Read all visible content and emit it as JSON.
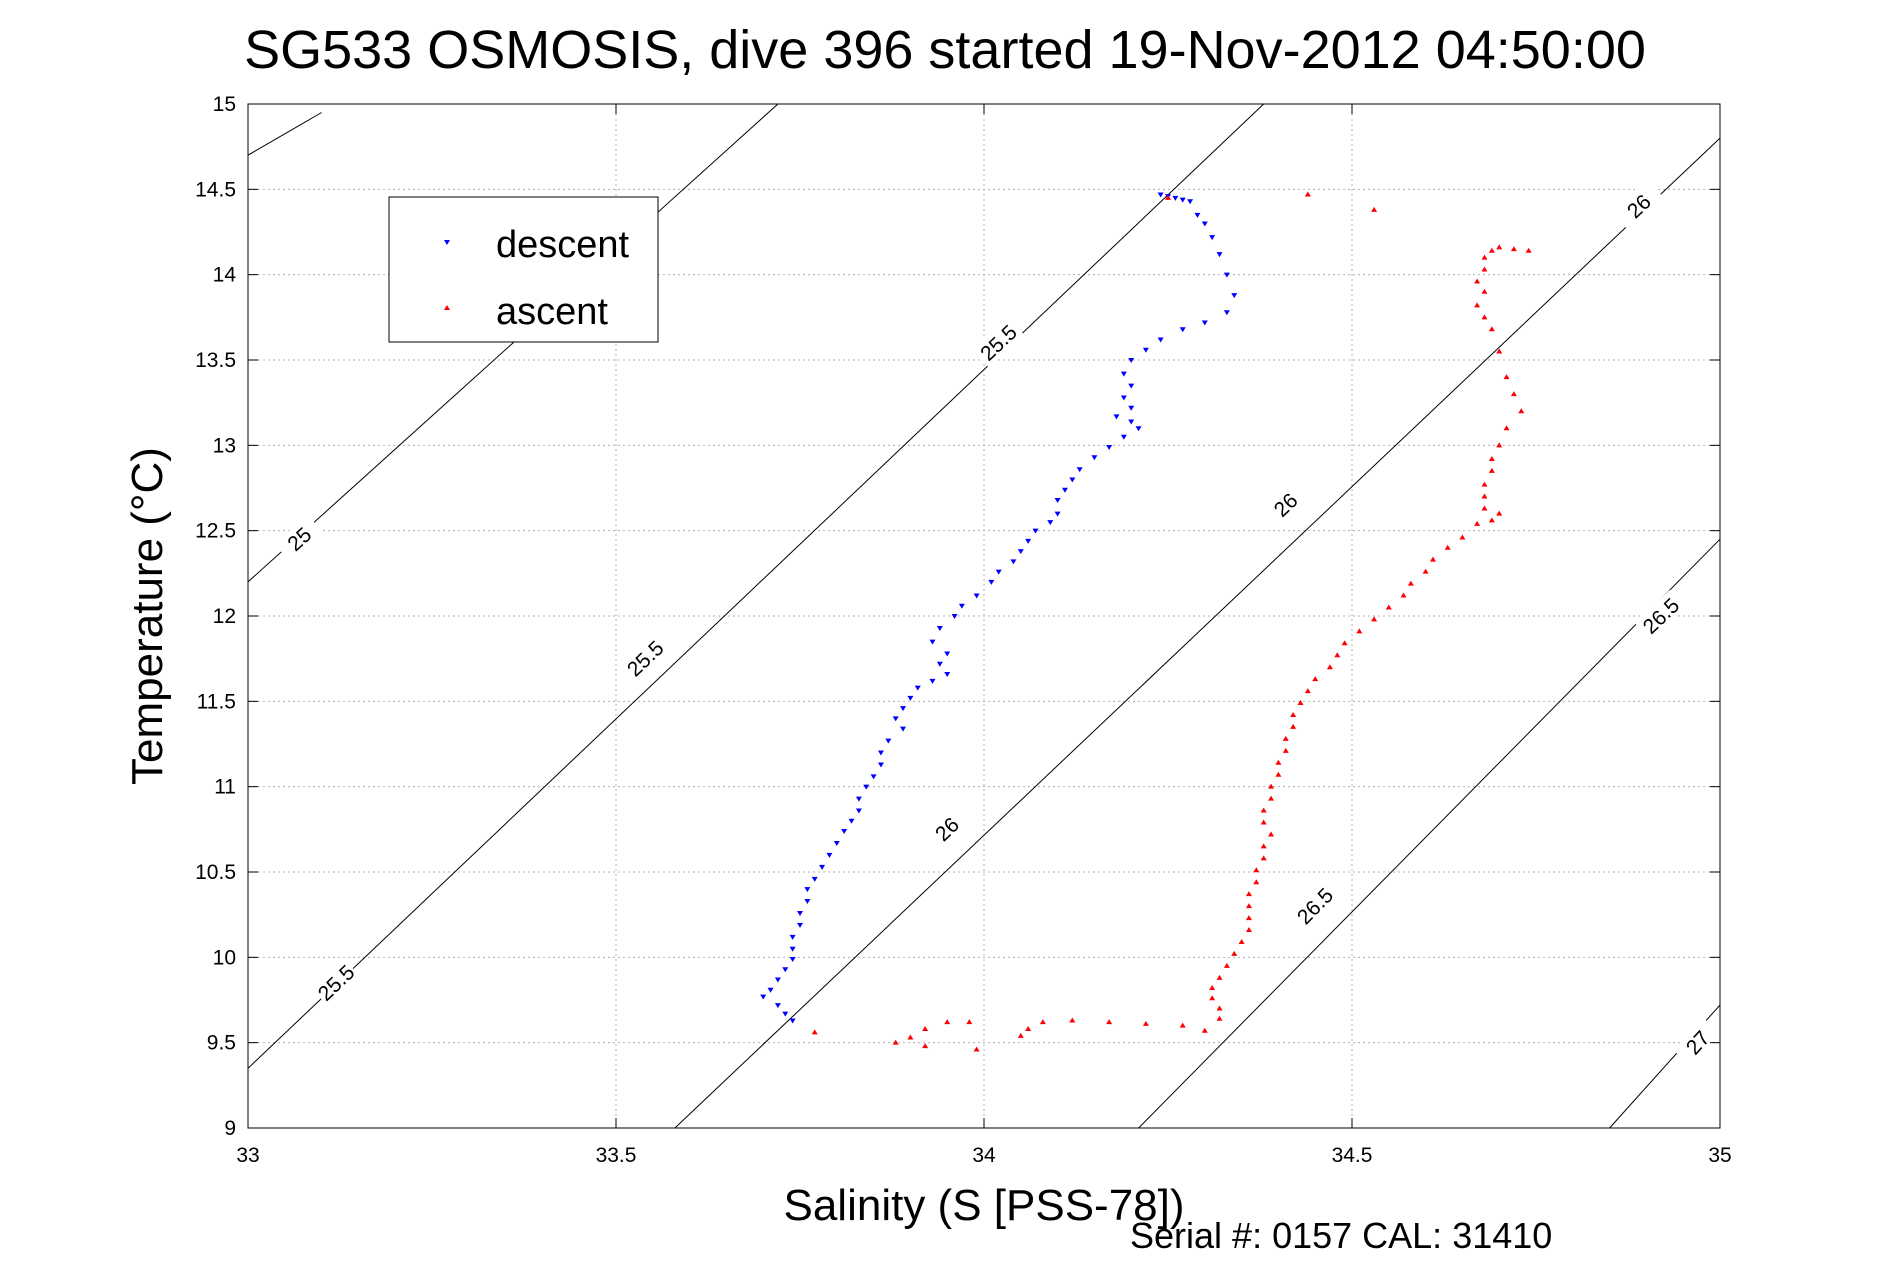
{
  "chart_data": {
    "type": "scatter",
    "title": "SG533 OSMOSIS, dive 396 started 19-Nov-2012 04:50:00",
    "xlabel": "Salinity (S [PSS-78])",
    "ylabel": "Temperature (°C)",
    "footer": "Serial #: 0157  CAL: 31410",
    "xlim": [
      33,
      35
    ],
    "ylim": [
      9,
      15
    ],
    "xticks": [
      "33",
      "33.5",
      "34",
      "34.5",
      "35"
    ],
    "yticks": [
      "9",
      "9.5",
      "10",
      "10.5",
      "11",
      "11.5",
      "12",
      "12.5",
      "13",
      "13.5",
      "14",
      "14.5",
      "15"
    ],
    "grid": true,
    "legend_position": "top-left",
    "density_contours": {
      "color": "#000000",
      "lines": [
        {
          "value": "25",
          "points": [
            [
              33.0,
              14.7
            ],
            [
              33.1,
              14.95
            ]
          ],
          "label_at": null
        },
        {
          "value": "25",
          "points": [
            [
              33.0,
              12.2
            ],
            [
              33.72,
              15.0
            ]
          ],
          "label_at": [
            33.07,
            12.45
          ]
        },
        {
          "value": "25.5",
          "points": [
            [
              33.0,
              9.35
            ],
            [
              34.38,
              15.0
            ]
          ],
          "label_at": [
            33.12,
            9.85
          ]
        },
        {
          "value": "26",
          "points": [
            [
              33.58,
              9.0
            ],
            [
              35.0,
              14.8
            ]
          ],
          "label_at": [
            33.95,
            10.75
          ]
        },
        {
          "value": "26.5",
          "points": [
            [
              34.21,
              9.0
            ],
            [
              35.0,
              12.45
            ]
          ],
          "label_at": [
            34.45,
            10.3
          ]
        },
        {
          "value": "27",
          "points": [
            [
              34.85,
              9.0
            ],
            [
              35.0,
              9.72
            ]
          ],
          "label_at": [
            34.97,
            9.5
          ]
        }
      ],
      "extra_labels": [
        {
          "text": "25.5",
          "at": [
            33.54,
            11.75
          ]
        },
        {
          "text": "25.5",
          "at": [
            34.02,
            13.6
          ]
        },
        {
          "text": "26",
          "at": [
            34.41,
            12.65
          ]
        },
        {
          "text": "26",
          "at": [
            34.89,
            14.4
          ]
        },
        {
          "text": "26.5",
          "at": [
            34.92,
            12.0
          ]
        }
      ]
    },
    "series": [
      {
        "name": "descent",
        "color": "#0000ff",
        "marker": "triangle-down",
        "points": [
          [
            34.24,
            14.47
          ],
          [
            34.25,
            14.46
          ],
          [
            34.26,
            14.45
          ],
          [
            34.27,
            14.44
          ],
          [
            34.28,
            14.43
          ],
          [
            34.29,
            14.35
          ],
          [
            34.3,
            14.3
          ],
          [
            34.31,
            14.22
          ],
          [
            34.32,
            14.12
          ],
          [
            34.33,
            14.0
          ],
          [
            34.34,
            13.88
          ],
          [
            34.33,
            13.78
          ],
          [
            34.3,
            13.72
          ],
          [
            34.27,
            13.68
          ],
          [
            34.24,
            13.62
          ],
          [
            34.22,
            13.56
          ],
          [
            34.2,
            13.5
          ],
          [
            34.19,
            13.42
          ],
          [
            34.2,
            13.35
          ],
          [
            34.19,
            13.28
          ],
          [
            34.2,
            13.22
          ],
          [
            34.18,
            13.17
          ],
          [
            34.2,
            13.14
          ],
          [
            34.21,
            13.1
          ],
          [
            34.19,
            13.05
          ],
          [
            34.17,
            12.99
          ],
          [
            34.15,
            12.93
          ],
          [
            34.13,
            12.86
          ],
          [
            34.12,
            12.8
          ],
          [
            34.11,
            12.74
          ],
          [
            34.1,
            12.68
          ],
          [
            34.1,
            12.6
          ],
          [
            34.09,
            12.55
          ],
          [
            34.07,
            12.5
          ],
          [
            34.06,
            12.44
          ],
          [
            34.05,
            12.38
          ],
          [
            34.04,
            12.32
          ],
          [
            34.02,
            12.26
          ],
          [
            34.01,
            12.2
          ],
          [
            33.99,
            12.12
          ],
          [
            33.97,
            12.06
          ],
          [
            33.96,
            12.0
          ],
          [
            33.94,
            11.93
          ],
          [
            33.93,
            11.85
          ],
          [
            33.95,
            11.78
          ],
          [
            33.94,
            11.72
          ],
          [
            33.95,
            11.66
          ],
          [
            33.93,
            11.62
          ],
          [
            33.91,
            11.58
          ],
          [
            33.9,
            11.52
          ],
          [
            33.89,
            11.46
          ],
          [
            33.88,
            11.4
          ],
          [
            33.89,
            11.34
          ],
          [
            33.87,
            11.27
          ],
          [
            33.86,
            11.2
          ],
          [
            33.86,
            11.13
          ],
          [
            33.85,
            11.06
          ],
          [
            33.84,
            11.0
          ],
          [
            33.83,
            10.93
          ],
          [
            33.83,
            10.86
          ],
          [
            33.82,
            10.8
          ],
          [
            33.81,
            10.74
          ],
          [
            33.8,
            10.67
          ],
          [
            33.79,
            10.6
          ],
          [
            33.78,
            10.53
          ],
          [
            33.77,
            10.46
          ],
          [
            33.76,
            10.4
          ],
          [
            33.76,
            10.33
          ],
          [
            33.75,
            10.26
          ],
          [
            33.75,
            10.19
          ],
          [
            33.74,
            10.12
          ],
          [
            33.74,
            10.05
          ],
          [
            33.74,
            9.99
          ],
          [
            33.73,
            9.93
          ],
          [
            33.72,
            9.87
          ],
          [
            33.71,
            9.81
          ],
          [
            33.7,
            9.77
          ],
          [
            33.72,
            9.72
          ],
          [
            33.73,
            9.67
          ],
          [
            33.74,
            9.63
          ]
        ]
      },
      {
        "name": "ascent",
        "color": "#ff0000",
        "marker": "triangle-up",
        "points": [
          [
            34.74,
            14.14
          ],
          [
            34.72,
            14.15
          ],
          [
            34.7,
            14.16
          ],
          [
            34.69,
            14.14
          ],
          [
            34.68,
            14.1
          ],
          [
            34.68,
            14.03
          ],
          [
            34.67,
            13.96
          ],
          [
            34.68,
            13.9
          ],
          [
            34.67,
            13.82
          ],
          [
            34.68,
            13.75
          ],
          [
            34.69,
            13.68
          ],
          [
            34.7,
            13.55
          ],
          [
            34.71,
            13.4
          ],
          [
            34.72,
            13.3
          ],
          [
            34.73,
            13.2
          ],
          [
            34.71,
            13.1
          ],
          [
            34.7,
            13.0
          ],
          [
            34.69,
            12.92
          ],
          [
            34.69,
            12.85
          ],
          [
            34.68,
            12.77
          ],
          [
            34.68,
            12.7
          ],
          [
            34.68,
            12.63
          ],
          [
            34.7,
            12.6
          ],
          [
            34.69,
            12.56
          ],
          [
            34.67,
            12.54
          ],
          [
            34.65,
            12.46
          ],
          [
            34.63,
            12.4
          ],
          [
            34.61,
            12.33
          ],
          [
            34.6,
            12.26
          ],
          [
            34.58,
            12.19
          ],
          [
            34.57,
            12.12
          ],
          [
            34.55,
            12.05
          ],
          [
            34.53,
            11.98
          ],
          [
            34.51,
            11.91
          ],
          [
            34.49,
            11.84
          ],
          [
            34.48,
            11.77
          ],
          [
            34.47,
            11.7
          ],
          [
            34.45,
            11.63
          ],
          [
            34.44,
            11.56
          ],
          [
            34.43,
            11.49
          ],
          [
            34.42,
            11.42
          ],
          [
            34.42,
            11.35
          ],
          [
            34.41,
            11.28
          ],
          [
            34.41,
            11.21
          ],
          [
            34.4,
            11.14
          ],
          [
            34.4,
            11.07
          ],
          [
            34.39,
            11.0
          ],
          [
            34.39,
            10.93
          ],
          [
            34.38,
            10.86
          ],
          [
            34.38,
            10.79
          ],
          [
            34.39,
            10.72
          ],
          [
            34.38,
            10.65
          ],
          [
            34.38,
            10.58
          ],
          [
            34.37,
            10.51
          ],
          [
            34.37,
            10.44
          ],
          [
            34.36,
            10.37
          ],
          [
            34.36,
            10.3
          ],
          [
            34.36,
            10.23
          ],
          [
            34.36,
            10.16
          ],
          [
            34.35,
            10.09
          ],
          [
            34.34,
            10.02
          ],
          [
            34.33,
            9.95
          ],
          [
            34.32,
            9.88
          ],
          [
            34.31,
            9.82
          ],
          [
            34.31,
            9.76
          ],
          [
            34.32,
            9.7
          ],
          [
            34.32,
            9.64
          ],
          [
            34.3,
            9.57
          ],
          [
            34.27,
            9.6
          ],
          [
            34.22,
            9.61
          ],
          [
            34.17,
            9.62
          ],
          [
            34.12,
            9.63
          ],
          [
            34.08,
            9.62
          ],
          [
            34.06,
            9.58
          ],
          [
            34.05,
            9.54
          ],
          [
            33.98,
            9.62
          ],
          [
            33.95,
            9.62
          ],
          [
            33.92,
            9.58
          ],
          [
            33.9,
            9.53
          ],
          [
            33.88,
            9.5
          ],
          [
            33.92,
            9.48
          ],
          [
            33.99,
            9.46
          ],
          [
            33.77,
            9.56
          ],
          [
            34.25,
            14.45
          ],
          [
            34.44,
            14.47
          ],
          [
            34.53,
            14.38
          ]
        ]
      }
    ]
  }
}
